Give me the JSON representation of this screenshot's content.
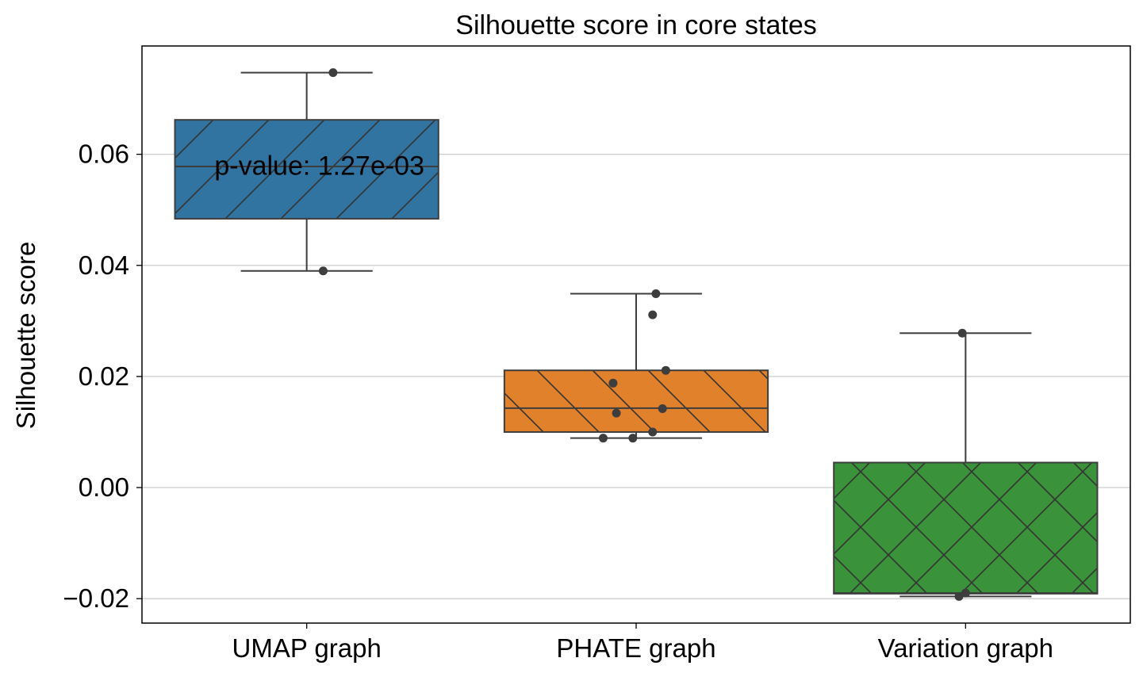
{
  "chart_data": {
    "type": "box",
    "title": "Silhouette score in core states",
    "xlabel": "",
    "ylabel": "Silhouette score",
    "ylim": [
      -0.0244,
      0.0795
    ],
    "yticks": [
      -0.02,
      0.0,
      0.02,
      0.04,
      0.06
    ],
    "ytick_labels": [
      "−0.02",
      "0.00",
      "0.02",
      "0.04",
      "0.06"
    ],
    "grid": "y",
    "categories": [
      "UMAP graph",
      "PHATE graph",
      "Variation graph"
    ],
    "colors": [
      "#3274a1",
      "#e1812c",
      "#3a923a"
    ],
    "hatches": [
      "/",
      "\\",
      "x"
    ],
    "boxes": [
      {
        "whisker_low": 0.039,
        "q1": 0.0484,
        "median": 0.0578,
        "q3": 0.0662,
        "whisker_high": 0.0747
      },
      {
        "whisker_low": 0.0089,
        "q1": 0.01,
        "median": 0.0143,
        "q3": 0.0211,
        "whisker_high": 0.0349
      },
      {
        "whisker_low": -0.0196,
        "q1": -0.0191,
        "median": -0.019,
        "q3": 0.0045,
        "whisker_high": 0.0278
      }
    ],
    "points": [
      [
        {
          "x": 0.08,
          "y": 0.0747
        },
        {
          "x": 0.05,
          "y": 0.039
        }
      ],
      [
        {
          "x": 0.06,
          "y": 0.0349
        },
        {
          "x": 0.05,
          "y": 0.0311
        },
        {
          "x": 0.09,
          "y": 0.0211
        },
        {
          "x": -0.07,
          "y": 0.0188
        },
        {
          "x": 0.08,
          "y": 0.0142
        },
        {
          "x": -0.06,
          "y": 0.0134
        },
        {
          "x": 0.05,
          "y": 0.01
        },
        {
          "x": -0.01,
          "y": 0.0089
        },
        {
          "x": -0.1,
          "y": 0.0089
        }
      ],
      [
        {
          "x": -0.01,
          "y": 0.0278
        },
        {
          "x": -0.02,
          "y": -0.0196
        },
        {
          "x": 0.0,
          "y": -0.019
        }
      ]
    ],
    "annotation": {
      "text": "p-value: 1.27e-03",
      "x": -0.28,
      "y": 0.058
    }
  }
}
